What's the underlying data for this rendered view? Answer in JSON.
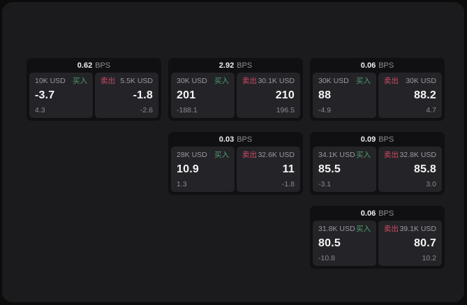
{
  "labels": {
    "bps_unit": "BPS",
    "buy": "买入",
    "sell": "卖出"
  },
  "colors": {
    "page_bg": "#0c0c0c",
    "canvas_bg": "#1b1b1d",
    "card_bg": "#101012",
    "panel_bg": "#242428",
    "buy_green": "#4f9e6c",
    "sell_red": "#cf4a63",
    "value_white": "#f5f5f6",
    "muted_gray": "#9a9a9f"
  },
  "cards": [
    {
      "bps": "0.62",
      "buy": {
        "size": "10K USD",
        "price": "-3.7",
        "delta": "4.3"
      },
      "sell": {
        "size": "5.5K USD",
        "price": "-1.8",
        "delta": "-2.6"
      }
    },
    {
      "bps": "2.92",
      "buy": {
        "size": "30K USD",
        "price": "201",
        "delta": "-188.1"
      },
      "sell": {
        "size": "30.1K USD",
        "price": "210",
        "delta": "196.5"
      }
    },
    {
      "bps": "0.06",
      "buy": {
        "size": "30K USD",
        "price": "88",
        "delta": "-4.9"
      },
      "sell": {
        "size": "30K USD",
        "price": "88.2",
        "delta": "4.7"
      }
    },
    {
      "bps": "0.03",
      "buy": {
        "size": "28K USD",
        "price": "10.9",
        "delta": "1.3"
      },
      "sell": {
        "size": "32.6K USD",
        "price": "11",
        "delta": "-1.8"
      }
    },
    {
      "bps": "0.09",
      "buy": {
        "size": "34.1K USD",
        "price": "85.5",
        "delta": "-3.1"
      },
      "sell": {
        "size": "32.8K USD",
        "price": "85.8",
        "delta": "3.0"
      }
    },
    {
      "bps": "0.06",
      "buy": {
        "size": "31.8K USD",
        "price": "80.5",
        "delta": "-10.8"
      },
      "sell": {
        "size": "39.1K USD",
        "price": "80.7",
        "delta": "10.2"
      }
    }
  ]
}
